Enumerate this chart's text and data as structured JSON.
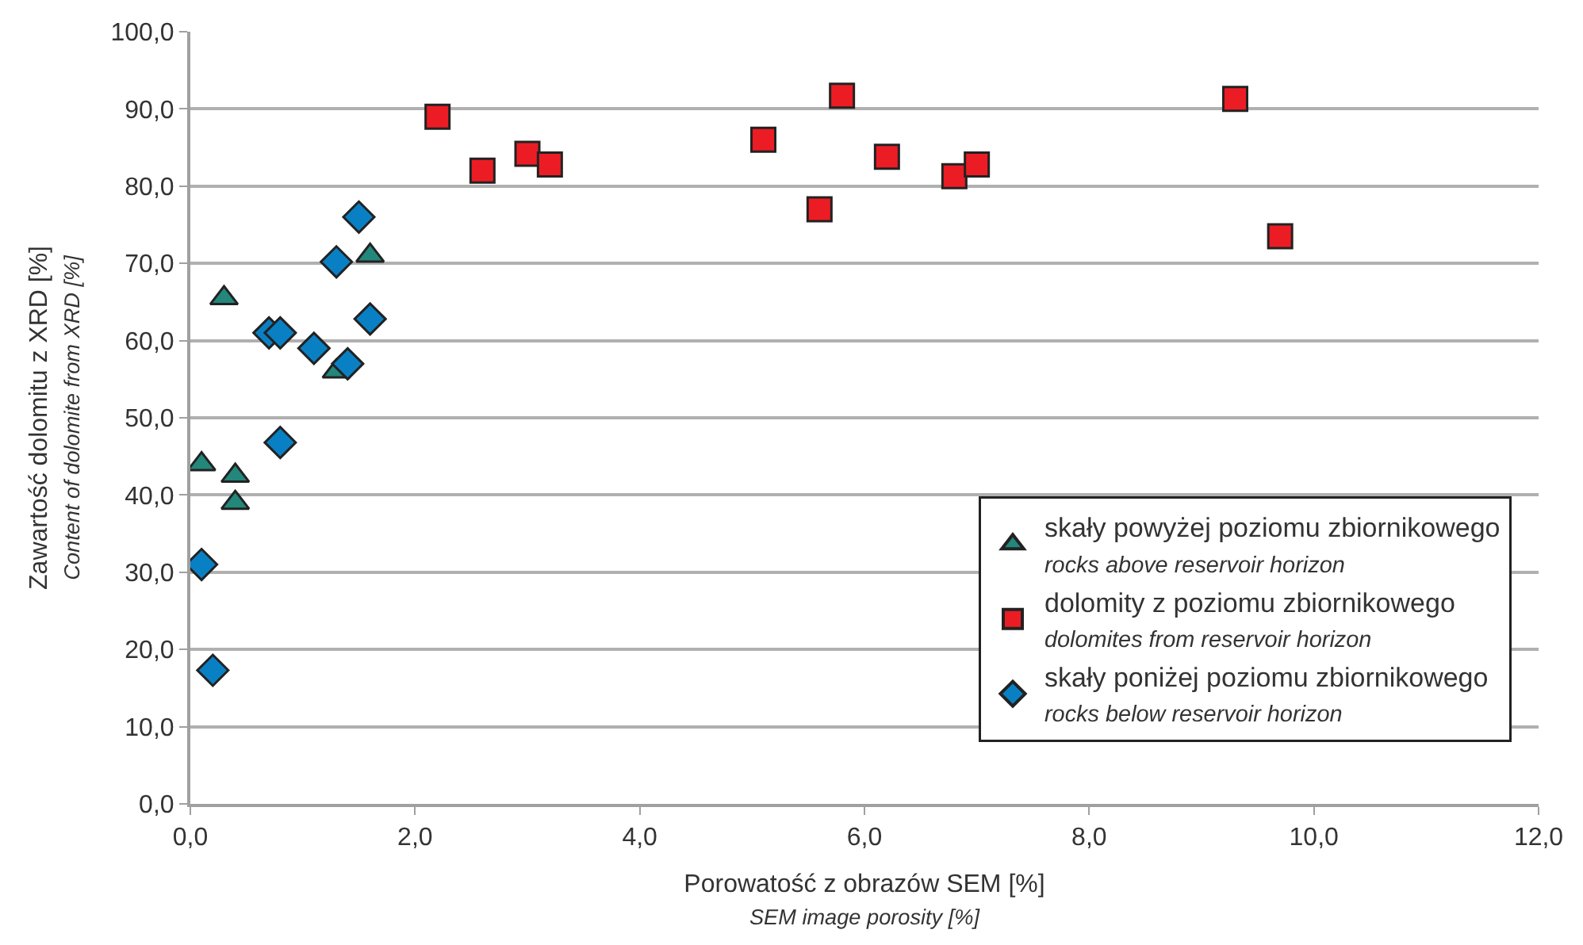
{
  "chart_data": {
    "type": "scatter",
    "xlabel": "Porowatość z obrazów SEM [%]\nSEM image porosity [%]",
    "ylabel": "Zawartość dolomitu z XRD [%]\nContent of dolomite from XRD [%]",
    "series": [
      {
        "name": "skały powyżej poziomu zbiornikowego\nrocks above reservoir horizon",
        "color": "#23877b",
        "marker": "triangle",
        "x": [
          0.1,
          0.3,
          0.4,
          0.4,
          1.3,
          1.6
        ],
        "values": [
          44,
          65.5,
          42.5,
          39,
          56,
          71
        ]
      },
      {
        "name": "dolomity z poziomu zbiornikowego\ndolomites from reservoir horizon",
        "color": "#ec1c24",
        "marker": "square",
        "x": [
          2.2,
          2.6,
          3.0,
          3.2,
          5.1,
          5.6,
          5.8,
          6.2,
          6.8,
          7.0,
          9.3,
          9.7
        ],
        "values": [
          89,
          82,
          84.2,
          82.8,
          86,
          77,
          91.7,
          83.8,
          81.3,
          82.8,
          91.3,
          73.5
        ]
      },
      {
        "name": "skały poniżej poziomu zbiornikowego\nrocks below reservoir horizon",
        "color": "#0a80c4",
        "marker": "diamond",
        "x": [
          0.1,
          0.2,
          0.7,
          0.8,
          0.8,
          1.1,
          1.3,
          1.4,
          1.5,
          1.6
        ],
        "values": [
          31,
          17.3,
          61,
          61,
          46.8,
          59,
          70.2,
          57,
          76,
          62.8
        ]
      }
    ],
    "xlim": [
      0,
      12
    ],
    "xticks": [
      {
        "value": 0,
        "label": "0,0"
      },
      {
        "value": 2,
        "label": "2,0"
      },
      {
        "value": 4,
        "label": "4,0"
      },
      {
        "value": 6,
        "label": "6,0"
      },
      {
        "value": 8,
        "label": "8,0"
      },
      {
        "value": 10,
        "label": "10,0"
      },
      {
        "value": 12,
        "label": "12,0"
      }
    ],
    "ylim": [
      0,
      100
    ],
    "yticks": [
      {
        "value": 0,
        "label": "0,0"
      },
      {
        "value": 10,
        "label": "10,0"
      },
      {
        "value": 20,
        "label": "20,0"
      },
      {
        "value": 30,
        "label": "30,0"
      },
      {
        "value": 40,
        "label": "40,0"
      },
      {
        "value": 50,
        "label": "50,0"
      },
      {
        "value": 60,
        "label": "60,0"
      },
      {
        "value": 70,
        "label": "70,0"
      },
      {
        "value": 80,
        "label": "80,0"
      },
      {
        "value": 90,
        "label": "90,0"
      },
      {
        "value": 100,
        "label": "100,0"
      }
    ],
    "grid": "y",
    "legend": "bottom right"
  }
}
